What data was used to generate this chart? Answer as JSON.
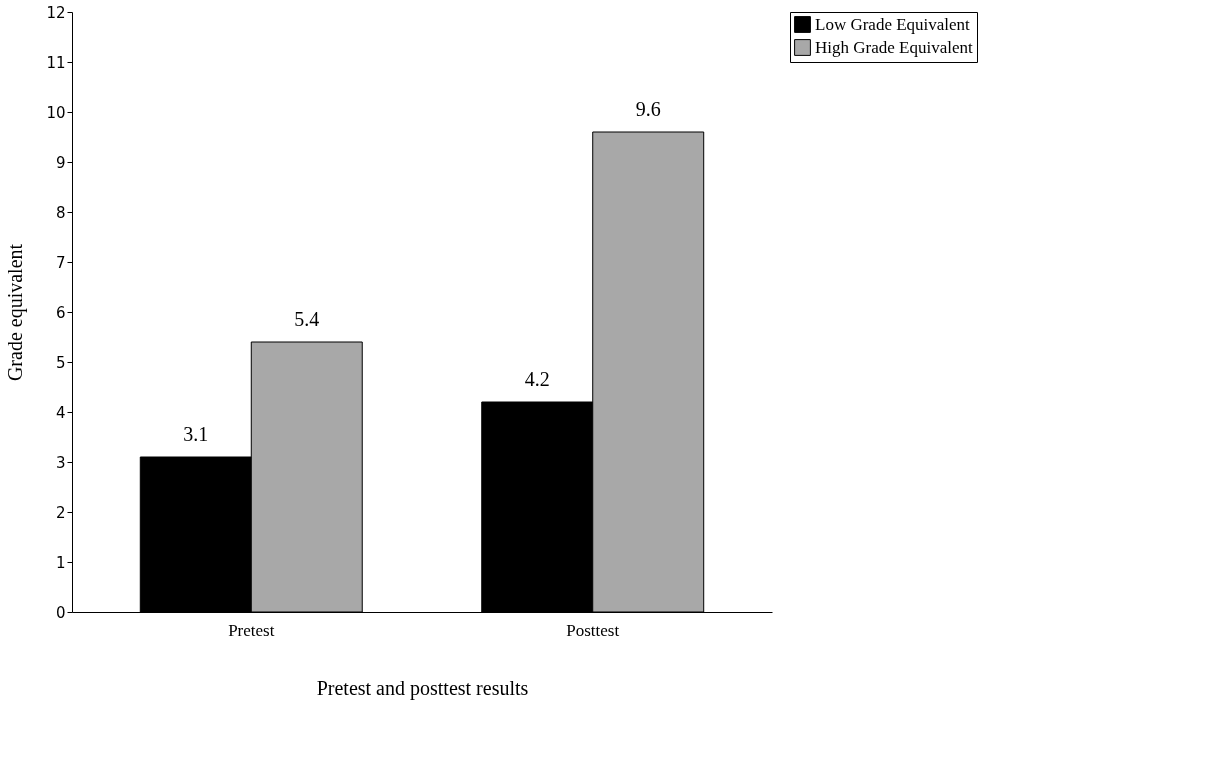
{
  "chart_data": {
    "type": "bar",
    "xlabel": "Pretest and posttest results",
    "ylabel": "Grade equivalent",
    "categories": [
      "Pretest",
      "Posttest"
    ],
    "series": [
      {
        "name": "Low Grade Equivalent",
        "color": "#000000",
        "values": [
          3.1,
          4.2
        ]
      },
      {
        "name": "High Grade Equivalent",
        "color": "#a8a8a8",
        "values": [
          5.4,
          9.6
        ]
      }
    ],
    "ylim": [
      0,
      12
    ],
    "yticks": [
      0,
      1,
      2,
      3,
      4,
      5,
      6,
      7,
      8,
      9,
      10,
      11,
      12
    ],
    "data_labels": true,
    "grid": false,
    "legend": "top right"
  }
}
